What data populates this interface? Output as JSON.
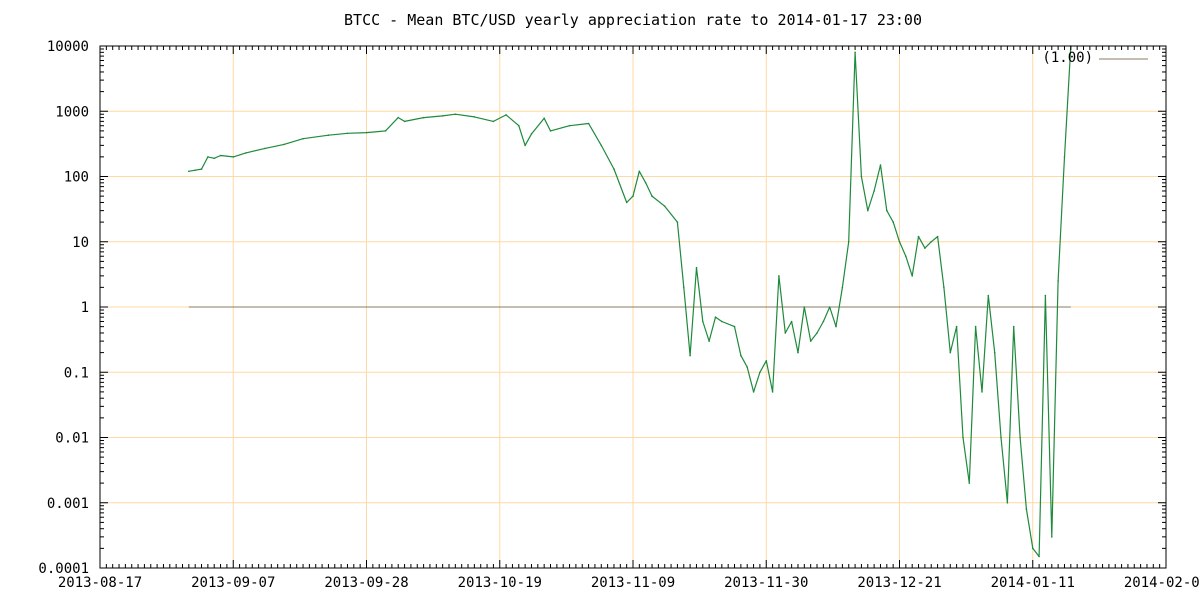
{
  "chart_data": {
    "type": "line",
    "title": "BTCC - Mean BTC/USD yearly appreciation rate to 2014-01-17 23:00",
    "xlabel": "",
    "ylabel": "",
    "y_scale": "log",
    "ylim": [
      0.0001,
      10000
    ],
    "xlim": [
      "2013-08-17",
      "2014-02-01"
    ],
    "grid": true,
    "grid_color": "#ffd9a3",
    "line_color": "#1e8a3c",
    "reference_color": "#8b7b5f",
    "legend_position": "top-right",
    "y_ticks": [
      {
        "value": 10000,
        "label": "10000"
      },
      {
        "value": 1000,
        "label": "1000"
      },
      {
        "value": 100,
        "label": "100"
      },
      {
        "value": 10,
        "label": "10"
      },
      {
        "value": 1,
        "label": "1"
      },
      {
        "value": 0.1,
        "label": "0.1"
      },
      {
        "value": 0.01,
        "label": "0.01"
      },
      {
        "value": 0.001,
        "label": "0.001"
      },
      {
        "value": 0.0001,
        "label": "0.0001"
      }
    ],
    "x_ticks": [
      {
        "value": "2013-08-17",
        "label": "2013-08-17"
      },
      {
        "value": "2013-09-07",
        "label": "2013-09-07"
      },
      {
        "value": "2013-09-28",
        "label": "2013-09-28"
      },
      {
        "value": "2013-10-19",
        "label": "2013-10-19"
      },
      {
        "value": "2013-11-09",
        "label": "2013-11-09"
      },
      {
        "value": "2013-11-30",
        "label": "2013-11-30"
      },
      {
        "value": "2013-12-21",
        "label": "2013-12-21"
      },
      {
        "value": "2014-01-11",
        "label": "2014-01-11"
      },
      {
        "value": "2014-02-01",
        "label": "2014-02-01"
      }
    ],
    "series": [
      {
        "name": "(1.00)",
        "kind": "reference",
        "x": [
          "2013-08-31",
          "2014-01-17"
        ],
        "y": [
          1,
          1
        ]
      },
      {
        "kind": "data",
        "x": [
          "2013-08-31",
          "2013-09-01",
          "2013-09-02",
          "2013-09-03",
          "2013-09-04",
          "2013-09-05",
          "2013-09-07",
          "2013-09-09",
          "2013-09-12",
          "2013-09-15",
          "2013-09-18",
          "2013-09-22",
          "2013-09-25",
          "2013-09-28",
          "2013-10-01",
          "2013-10-03",
          "2013-10-04",
          "2013-10-07",
          "2013-10-10",
          "2013-10-12",
          "2013-10-15",
          "2013-10-18",
          "2013-10-20",
          "2013-10-22",
          "2013-10-23",
          "2013-10-24",
          "2013-10-26",
          "2013-10-27",
          "2013-10-30",
          "2013-11-02",
          "2013-11-04",
          "2013-11-06",
          "2013-11-08",
          "2013-11-09",
          "2013-11-10",
          "2013-11-11",
          "2013-11-12",
          "2013-11-14",
          "2013-11-16",
          "2013-11-17",
          "2013-11-18",
          "2013-11-19",
          "2013-11-20",
          "2013-11-21",
          "2013-11-22",
          "2013-11-23",
          "2013-11-25",
          "2013-11-26",
          "2013-11-27",
          "2013-11-28",
          "2013-11-29",
          "2013-11-30",
          "2013-12-01",
          "2013-12-02",
          "2013-12-03",
          "2013-12-04",
          "2013-12-05",
          "2013-12-06",
          "2013-12-07",
          "2013-12-08",
          "2013-12-09",
          "2013-12-10",
          "2013-12-11",
          "2013-12-12",
          "2013-12-13",
          "2013-12-14",
          "2013-12-15",
          "2013-12-16",
          "2013-12-17",
          "2013-12-18",
          "2013-12-19",
          "2013-12-20",
          "2013-12-21",
          "2013-12-22",
          "2013-12-23",
          "2013-12-24",
          "2013-12-25",
          "2013-12-26",
          "2013-12-27",
          "2013-12-28",
          "2013-12-29",
          "2013-12-30",
          "2013-12-31",
          "2014-01-01",
          "2014-01-02",
          "2014-01-03",
          "2014-01-04",
          "2014-01-05",
          "2014-01-06",
          "2014-01-07",
          "2014-01-08",
          "2014-01-09",
          "2014-01-10",
          "2014-01-11",
          "2014-01-12",
          "2014-01-13",
          "2014-01-14",
          "2014-01-15",
          "2014-01-16",
          "2014-01-17"
        ],
        "y": [
          120,
          125,
          130,
          200,
          190,
          210,
          200,
          230,
          270,
          310,
          380,
          430,
          460,
          470,
          500,
          800,
          700,
          800,
          850,
          900,
          820,
          700,
          880,
          600,
          300,
          450,
          780,
          500,
          600,
          650,
          300,
          130,
          40,
          50,
          120,
          80,
          50,
          35,
          20,
          2,
          0.18,
          4,
          0.6,
          0.3,
          0.7,
          0.6,
          0.5,
          0.18,
          0.12,
          0.05,
          0.1,
          0.15,
          0.05,
          3,
          0.4,
          0.6,
          0.2,
          1,
          0.3,
          0.4,
          0.6,
          1,
          0.5,
          2,
          10,
          8000,
          100,
          30,
          60,
          150,
          30,
          20,
          10,
          6,
          3,
          12,
          8,
          10,
          12,
          2,
          0.2,
          0.5,
          0.01,
          0.002,
          0.5,
          0.05,
          1.5,
          0.2,
          0.01,
          0.001,
          0.5,
          0.01,
          0.0008,
          0.0002,
          0.00015,
          1.5,
          0.0003,
          2.5,
          200,
          10000
        ]
      }
    ]
  }
}
